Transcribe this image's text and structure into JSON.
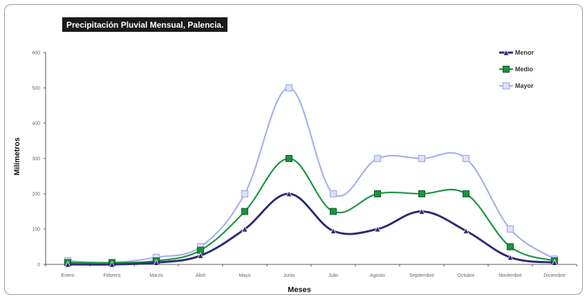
{
  "chart_data": {
    "type": "line",
    "title": "Precipitación Pluvial Mensual, Palencia.",
    "xlabel": "Meses",
    "ylabel": "Milímetros",
    "ylim": [
      0,
      600
    ],
    "yticks": [
      0,
      100,
      200,
      300,
      400,
      500,
      600
    ],
    "categories": [
      "Enero",
      "Febrero",
      "Marzo",
      "Abril",
      "Mayo",
      "Junio",
      "Julio",
      "Agosto",
      "Septiembre",
      "Octubre",
      "Noviembre",
      "Diciembre"
    ],
    "series": [
      {
        "name": "Menor",
        "color": "#2e2a78",
        "marker": "triangle",
        "values": [
          0,
          0,
          5,
          25,
          100,
          200,
          95,
          100,
          150,
          95,
          20,
          5
        ]
      },
      {
        "name": "Medio",
        "color": "#1a9440",
        "marker": "square",
        "values": [
          5,
          5,
          10,
          40,
          150,
          300,
          150,
          200,
          200,
          200,
          50,
          10
        ]
      },
      {
        "name": "Mayor",
        "color": "#a8aef0",
        "marker": "square-open",
        "values": [
          10,
          5,
          20,
          50,
          200,
          500,
          200,
          300,
          300,
          300,
          100,
          15
        ]
      }
    ],
    "legend_position": "top-right",
    "grid": false
  }
}
